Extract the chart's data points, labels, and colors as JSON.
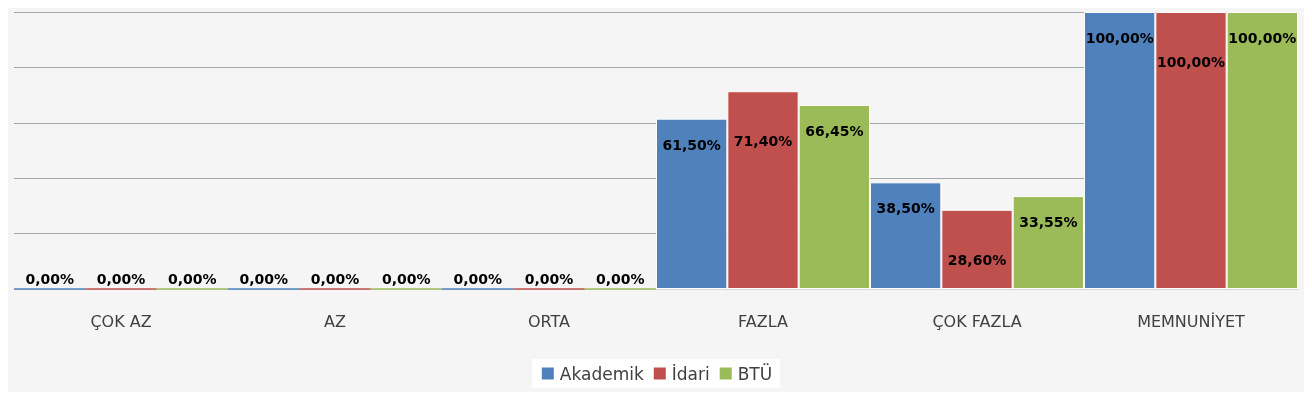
{
  "chart_data": {
    "type": "bar",
    "categories": [
      "ÇOK AZ",
      "AZ",
      "ORTA",
      "FAZLA",
      "ÇOK FAZLA",
      "MEMNUNİYET"
    ],
    "series": [
      {
        "name": "Akademik",
        "color": "#4f81bd",
        "values": [
          0,
          0,
          0,
          61.5,
          38.5,
          100
        ],
        "value_labels": [
          "0,00%",
          "0,00%",
          "0,00%",
          "61,50%",
          "38,50%",
          "100,00%"
        ]
      },
      {
        "name": "İdari",
        "color": "#c0504d",
        "values": [
          0,
          0,
          0,
          71.4,
          28.6,
          100
        ],
        "value_labels": [
          "0,00%",
          "0,00%",
          "0,00%",
          "71,40%",
          "28,60%",
          "100,00%"
        ]
      },
      {
        "name": "BTÜ",
        "color": "#9bbb59",
        "values": [
          0,
          0,
          0,
          66.45,
          33.55,
          100
        ],
        "value_labels": [
          "0,00%",
          "0,00%",
          "0,00%",
          "66,45%",
          "33,55%",
          "100,00%"
        ]
      }
    ],
    "ylim": [
      0,
      100
    ],
    "yticks": [
      0,
      20,
      40,
      60,
      80,
      100
    ],
    "tick_labels": "x",
    "grid": "y",
    "legend": "bottom"
  }
}
